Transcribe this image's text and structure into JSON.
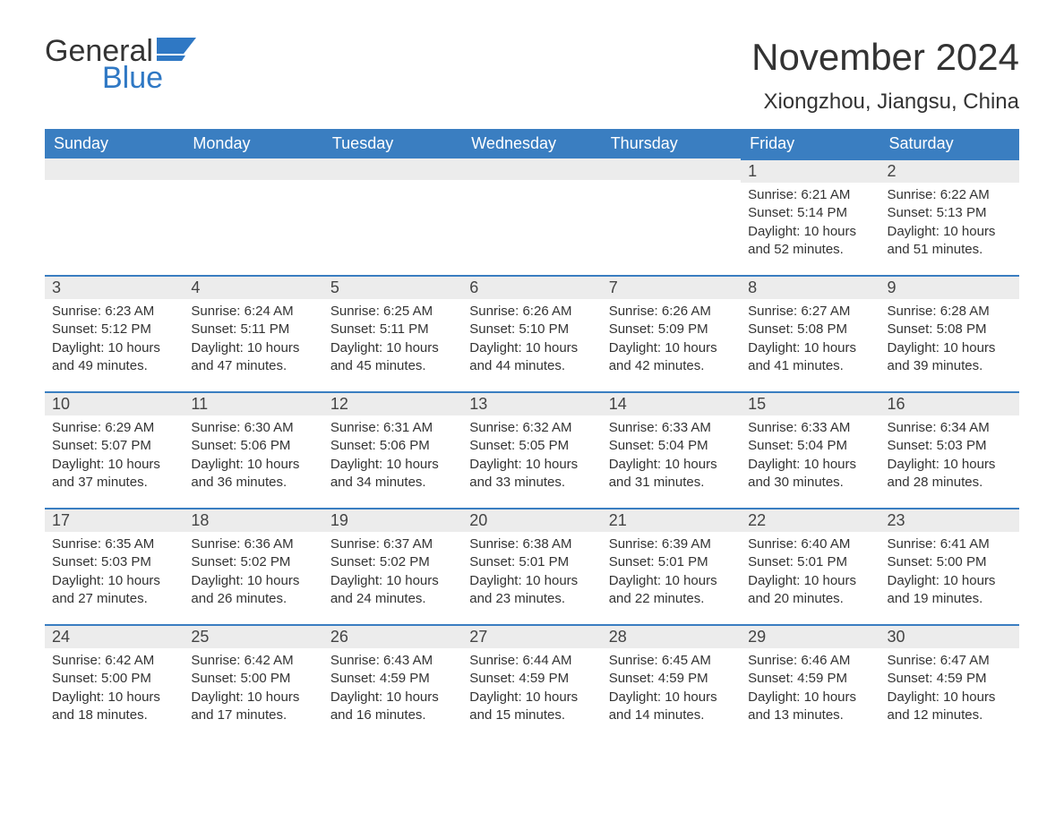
{
  "brand": {
    "word1": "General",
    "word2": "Blue",
    "flag_color": "#2f78c4"
  },
  "title": "November 2024",
  "location": "Xiongzhou, Jiangsu, China",
  "colors": {
    "header_bg": "#3a7ec1",
    "header_text": "#ffffff",
    "daynum_bg": "#ececec",
    "border_top": "#3a7ec1",
    "body_text": "#333333",
    "background": "#ffffff"
  },
  "typography": {
    "title_fontsize": 42,
    "location_fontsize": 24,
    "header_fontsize": 18,
    "daynum_fontsize": 18,
    "cell_fontsize": 15,
    "font_family": "Segoe UI, Arial, sans-serif"
  },
  "weekdays": [
    "Sunday",
    "Monday",
    "Tuesday",
    "Wednesday",
    "Thursday",
    "Friday",
    "Saturday"
  ],
  "weeks": [
    [
      null,
      null,
      null,
      null,
      null,
      {
        "d": "1",
        "sr": "6:21 AM",
        "ss": "5:14 PM",
        "dl": "10 hours and 52 minutes."
      },
      {
        "d": "2",
        "sr": "6:22 AM",
        "ss": "5:13 PM",
        "dl": "10 hours and 51 minutes."
      }
    ],
    [
      {
        "d": "3",
        "sr": "6:23 AM",
        "ss": "5:12 PM",
        "dl": "10 hours and 49 minutes."
      },
      {
        "d": "4",
        "sr": "6:24 AM",
        "ss": "5:11 PM",
        "dl": "10 hours and 47 minutes."
      },
      {
        "d": "5",
        "sr": "6:25 AM",
        "ss": "5:11 PM",
        "dl": "10 hours and 45 minutes."
      },
      {
        "d": "6",
        "sr": "6:26 AM",
        "ss": "5:10 PM",
        "dl": "10 hours and 44 minutes."
      },
      {
        "d": "7",
        "sr": "6:26 AM",
        "ss": "5:09 PM",
        "dl": "10 hours and 42 minutes."
      },
      {
        "d": "8",
        "sr": "6:27 AM",
        "ss": "5:08 PM",
        "dl": "10 hours and 41 minutes."
      },
      {
        "d": "9",
        "sr": "6:28 AM",
        "ss": "5:08 PM",
        "dl": "10 hours and 39 minutes."
      }
    ],
    [
      {
        "d": "10",
        "sr": "6:29 AM",
        "ss": "5:07 PM",
        "dl": "10 hours and 37 minutes."
      },
      {
        "d": "11",
        "sr": "6:30 AM",
        "ss": "5:06 PM",
        "dl": "10 hours and 36 minutes."
      },
      {
        "d": "12",
        "sr": "6:31 AM",
        "ss": "5:06 PM",
        "dl": "10 hours and 34 minutes."
      },
      {
        "d": "13",
        "sr": "6:32 AM",
        "ss": "5:05 PM",
        "dl": "10 hours and 33 minutes."
      },
      {
        "d": "14",
        "sr": "6:33 AM",
        "ss": "5:04 PM",
        "dl": "10 hours and 31 minutes."
      },
      {
        "d": "15",
        "sr": "6:33 AM",
        "ss": "5:04 PM",
        "dl": "10 hours and 30 minutes."
      },
      {
        "d": "16",
        "sr": "6:34 AM",
        "ss": "5:03 PM",
        "dl": "10 hours and 28 minutes."
      }
    ],
    [
      {
        "d": "17",
        "sr": "6:35 AM",
        "ss": "5:03 PM",
        "dl": "10 hours and 27 minutes."
      },
      {
        "d": "18",
        "sr": "6:36 AM",
        "ss": "5:02 PM",
        "dl": "10 hours and 26 minutes."
      },
      {
        "d": "19",
        "sr": "6:37 AM",
        "ss": "5:02 PM",
        "dl": "10 hours and 24 minutes."
      },
      {
        "d": "20",
        "sr": "6:38 AM",
        "ss": "5:01 PM",
        "dl": "10 hours and 23 minutes."
      },
      {
        "d": "21",
        "sr": "6:39 AM",
        "ss": "5:01 PM",
        "dl": "10 hours and 22 minutes."
      },
      {
        "d": "22",
        "sr": "6:40 AM",
        "ss": "5:01 PM",
        "dl": "10 hours and 20 minutes."
      },
      {
        "d": "23",
        "sr": "6:41 AM",
        "ss": "5:00 PM",
        "dl": "10 hours and 19 minutes."
      }
    ],
    [
      {
        "d": "24",
        "sr": "6:42 AM",
        "ss": "5:00 PM",
        "dl": "10 hours and 18 minutes."
      },
      {
        "d": "25",
        "sr": "6:42 AM",
        "ss": "5:00 PM",
        "dl": "10 hours and 17 minutes."
      },
      {
        "d": "26",
        "sr": "6:43 AM",
        "ss": "4:59 PM",
        "dl": "10 hours and 16 minutes."
      },
      {
        "d": "27",
        "sr": "6:44 AM",
        "ss": "4:59 PM",
        "dl": "10 hours and 15 minutes."
      },
      {
        "d": "28",
        "sr": "6:45 AM",
        "ss": "4:59 PM",
        "dl": "10 hours and 14 minutes."
      },
      {
        "d": "29",
        "sr": "6:46 AM",
        "ss": "4:59 PM",
        "dl": "10 hours and 13 minutes."
      },
      {
        "d": "30",
        "sr": "6:47 AM",
        "ss": "4:59 PM",
        "dl": "10 hours and 12 minutes."
      }
    ]
  ],
  "labels": {
    "sunrise": "Sunrise: ",
    "sunset": "Sunset: ",
    "daylight": "Daylight: "
  }
}
